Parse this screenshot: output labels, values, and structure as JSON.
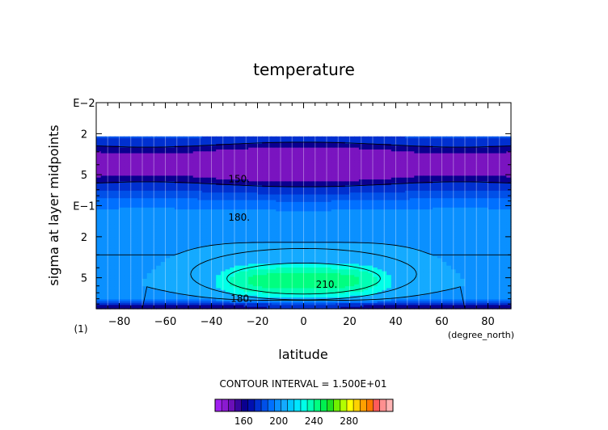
{
  "chart_data": {
    "type": "contour",
    "title": "temperature",
    "xlabel": "latitude",
    "ylabel": "sigma at layer midpoints",
    "x_unit": "(degree_north)",
    "y_corner_label": "(1)",
    "xlim": [
      -90,
      90
    ],
    "ylim": [
      1,
      0.01
    ],
    "y_scale": "log",
    "grid": true,
    "x_ticks": [
      "−80",
      "−60",
      "−40",
      "−20",
      "0",
      "20",
      "40",
      "60",
      "80"
    ],
    "x_tick_values": [
      -80,
      -60,
      -40,
      -20,
      0,
      20,
      40,
      60,
      80
    ],
    "y_ticks": [
      "E−2",
      "2",
      "5",
      "E−1",
      "2",
      "5"
    ],
    "y_tick_values": [
      0.01,
      0.02,
      0.05,
      0.1,
      0.2,
      0.5
    ],
    "contour_labels": [
      {
        "text": "150.",
        "lat": -28,
        "sigma": 0.055
      },
      {
        "text": "180.",
        "lat": -28,
        "sigma": 0.13
      },
      {
        "text": "210.",
        "lat": 10,
        "sigma": 0.58
      },
      {
        "text": "180.",
        "lat": -27,
        "sigma": 0.8
      }
    ],
    "contour_interval_text": "CONTOUR INTERVAL = 1.500E+01",
    "colorbar": {
      "min": 127.5,
      "step": 7.5,
      "colors": [
        "#a020f0",
        "#8a1ad0",
        "#6a0fb8",
        "#3a06a0",
        "#0a0090",
        "#0010b0",
        "#0030d0",
        "#0050e8",
        "#0070ff",
        "#0a90ff",
        "#14aaff",
        "#00c8ff",
        "#00e6ff",
        "#00ffe8",
        "#00ffb4",
        "#00ff80",
        "#00f050",
        "#20e020",
        "#70f000",
        "#b4ff00",
        "#ffff00",
        "#ffd200",
        "#ffa000",
        "#ff7800",
        "#ff5a5a",
        "#ff9090",
        "#ffb4b4"
      ],
      "tick_labels": [
        "160",
        "200",
        "240",
        "280"
      ],
      "tick_values": [
        160,
        200,
        240,
        280
      ]
    },
    "temperature_bands": [
      {
        "T": 135,
        "color": "#7a14c0"
      },
      {
        "T": 145,
        "color": "#0a0090"
      },
      {
        "T": 150,
        "color": "#0030d0"
      },
      {
        "T": 158,
        "color": "#0050e8"
      },
      {
        "T": 165,
        "color": "#0070ff"
      },
      {
        "T": 172,
        "color": "#0a90ff"
      },
      {
        "T": 180,
        "color": "#14aaff"
      },
      {
        "T": 195,
        "color": "#00ffe8"
      },
      {
        "T": 205,
        "color": "#00ffb4"
      },
      {
        "T": 215,
        "color": "#00ff80"
      },
      {
        "T": 222,
        "color": "#30ee40"
      }
    ]
  }
}
